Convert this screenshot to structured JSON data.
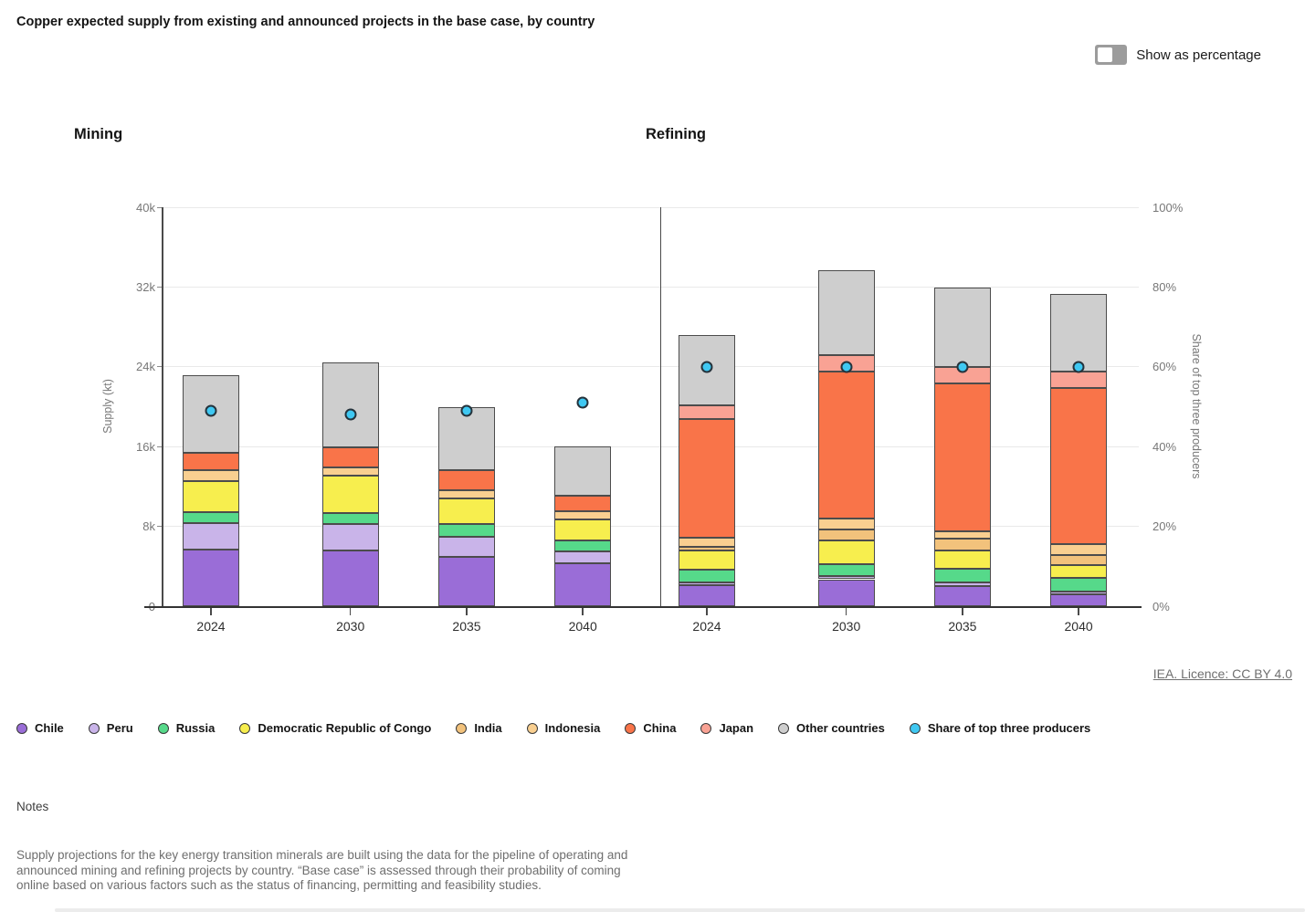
{
  "header": {
    "title": "Copper expected supply from existing and announced projects in the base case, by country"
  },
  "controls": {
    "show_as_percentage_label": "Show as percentage",
    "toggle_state": "off"
  },
  "footer": {
    "licence": "IEA. Licence: CC BY 4.0"
  },
  "notes": {
    "heading": "Notes",
    "body": "Supply projections for the key energy transition minerals are built using the data for the pipeline of operating and announced mining and refining projects by country. “Base case” is assessed through their probability of coming online based on various factors such as the status of financing, permitting and feasibility studies."
  },
  "legend": {
    "items": [
      {
        "key": "Chile",
        "label": "Chile"
      },
      {
        "key": "Peru",
        "label": "Peru"
      },
      {
        "key": "Russia",
        "label": "Russia"
      },
      {
        "key": "Democratic Republic of Congo",
        "label": "Democratic Republic of Congo"
      },
      {
        "key": "India",
        "label": "India"
      },
      {
        "key": "Indonesia",
        "label": "Indonesia"
      },
      {
        "key": "China",
        "label": "China"
      },
      {
        "key": "Japan",
        "label": "Japan"
      },
      {
        "key": "Other countries",
        "label": "Other countries"
      },
      {
        "key": "share_dot",
        "label": "Share of top three producers"
      }
    ]
  },
  "chart_data": {
    "type": "bar",
    "stacked": true,
    "grid": true,
    "legend_position": "bottom",
    "left_axis": {
      "label": "Supply (kt)",
      "max": 40000,
      "ticks": [
        {
          "value": 0,
          "label": "0"
        },
        {
          "value": 8000,
          "label": "8k"
        },
        {
          "value": 16000,
          "label": "16k"
        },
        {
          "value": 24000,
          "label": "24k"
        },
        {
          "value": 32000,
          "label": "32k"
        },
        {
          "value": 40000,
          "label": "40k"
        }
      ]
    },
    "right_axis": {
      "label": "Share of top three producers",
      "max": 100,
      "ticks": [
        {
          "value": 0,
          "label": "0%"
        },
        {
          "value": 20,
          "label": "20%"
        },
        {
          "value": 40,
          "label": "40%"
        },
        {
          "value": 60,
          "label": "60%"
        },
        {
          "value": 80,
          "label": "80%"
        },
        {
          "value": 100,
          "label": "100%"
        }
      ]
    },
    "series_order": [
      "Chile",
      "Peru",
      "Russia",
      "Democratic Republic of Congo",
      "India",
      "Indonesia",
      "China",
      "Japan",
      "Other countries"
    ],
    "colors": {
      "Chile": "#9a6dd7",
      "Peru": "#c9b4e9",
      "Russia": "#56d98a",
      "Democratic Republic of Congo": "#f7ee4e",
      "India": "#f2c27c",
      "Indonesia": "#f9cf90",
      "China": "#f97449",
      "Japan": "#f9a294",
      "Other countries": "#cecece",
      "share_dot": "#3fc8f2"
    },
    "panels": [
      {
        "title": "Mining",
        "categories": [
          "2024",
          "2030",
          "2035",
          "2040"
        ],
        "stacks_kt": {
          "Chile": [
            5700,
            5600,
            4900,
            4300
          ],
          "Peru": [
            2650,
            2600,
            2100,
            1200
          ],
          "Russia": [
            1100,
            1100,
            1200,
            1100
          ],
          "Democratic Republic of Congo": [
            3100,
            3800,
            2600,
            2100
          ],
          "India": [
            0,
            0,
            0,
            0
          ],
          "Indonesia": [
            1050,
            850,
            850,
            800
          ],
          "China": [
            1750,
            2000,
            1950,
            1600
          ],
          "Japan": [
            0,
            0,
            0,
            0
          ],
          "Other countries": [
            7800,
            8500,
            6400,
            4900
          ]
        },
        "totals_kt": [
          23150,
          24450,
          20000,
          16000
        ],
        "share_of_top_three_pct": [
          49,
          48,
          49,
          51
        ]
      },
      {
        "title": "Refining",
        "categories": [
          "2024",
          "2030",
          "2035",
          "2040"
        ],
        "stacks_kt": {
          "Chile": [
            2100,
            2700,
            2000,
            1200
          ],
          "Peru": [
            300,
            350,
            350,
            300
          ],
          "Russia": [
            1300,
            1150,
            1400,
            1300
          ],
          "Democratic Republic of Congo": [
            1900,
            2400,
            1800,
            1300
          ],
          "India": [
            350,
            1100,
            1200,
            1050
          ],
          "Indonesia": [
            900,
            1100,
            800,
            1050
          ],
          "China": [
            11900,
            14700,
            14800,
            15700
          ],
          "Japan": [
            1400,
            1700,
            1600,
            1600
          ],
          "Other countries": [
            7000,
            8500,
            8000,
            7800
          ]
        },
        "totals_kt": [
          27150,
          33700,
          31950,
          31300
        ],
        "share_of_top_three_pct": [
          60,
          60,
          60,
          60
        ]
      }
    ]
  }
}
